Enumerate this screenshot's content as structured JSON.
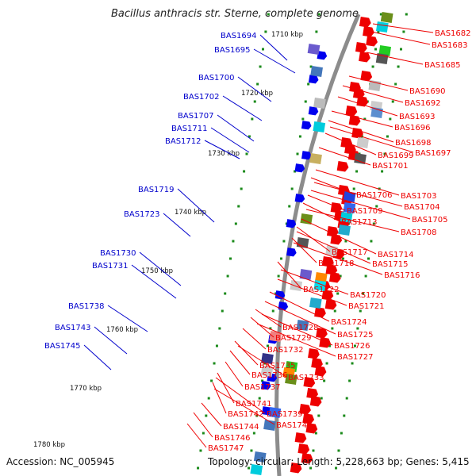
{
  "title": "Bacillus anthracis str. Sterne, complete genome",
  "accession": "Accession: NC_005945",
  "topology": "Topology: circular; Length: 5,228,663 bp; Genes: 5,415",
  "colors": {
    "backbone": "#8c8c8c",
    "tick": "#1a8a1a",
    "left_label": "#0000cc",
    "right_label": "#ee0000",
    "feature_blue": "#0000ee",
    "feature_red": "#ee0000"
  },
  "kbp_ticks": [
    "1710 kbp",
    "1720 kbp",
    "1730 kbp",
    "1740 kbp",
    "1750 kbp",
    "1760 kbp",
    "1770 kbp",
    "1780 kbp"
  ],
  "left_labels": [
    "BAS1694",
    "BAS1695",
    "BAS1700",
    "BAS1702",
    "BAS1707",
    "BAS1711",
    "BAS1712",
    "BAS1719",
    "BAS1723",
    "BAS1730",
    "BAS1731",
    "BAS1738",
    "BAS1743",
    "BAS1745"
  ],
  "right_labels": [
    "BAS1682",
    "BAS1683",
    "BAS1685",
    "BAS1690",
    "BAS1692",
    "BAS1693",
    "BAS1696",
    "BAS1698",
    "BAS1699",
    "BAS1697",
    "BAS1701",
    "BAS1706",
    "BAS1703",
    "BAS1704",
    "BAS1709",
    "BAS1705",
    "BAS1713",
    "BAS1708",
    "BAS1717",
    "BAS1714",
    "BAS1718",
    "BAS1715",
    "BAS1716",
    "BAS1722",
    "BAS1720",
    "BAS1721",
    "BAS1724",
    "BAS1728",
    "BAS1725",
    "BAS1729",
    "BAS1726",
    "BAS1732",
    "BAS1727",
    "BAS1735",
    "BAS1736",
    "BAS1733",
    "BAS1737",
    "BAS1741",
    "BAS1742",
    "BAS1739",
    "BAS1740",
    "BAS1744",
    "BAS1746",
    "BAS1747"
  ]
}
